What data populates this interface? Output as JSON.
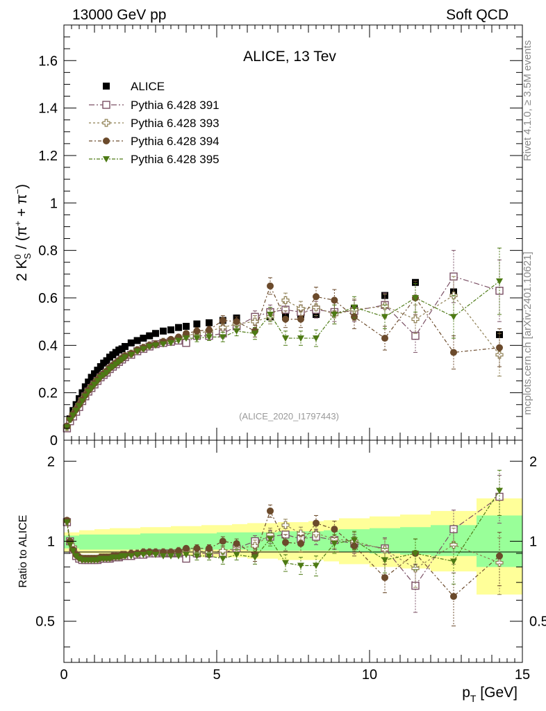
{
  "header": {
    "left": "13000 GeV pp",
    "right": "Soft QCD"
  },
  "side_labels": {
    "rivet": "Rivet 4.1.0, ≥ 3.5M events",
    "mcplots": "mcplots.cern.ch [arXiv:2401.10621]"
  },
  "colors": {
    "alice": "#000000",
    "p391": "#7a4f64",
    "p393": "#8e7f52",
    "p394": "#6b4a2b",
    "p395": "#4d7a14",
    "band_yellow": "#ffff99",
    "band_green": "#99ff99"
  },
  "chart_data": [
    {
      "type": "scatter",
      "title": "ALICE, 13 Tev",
      "analysis_tag": "(ALICE_2020_I1797443)",
      "ylabel": "2 K_S^0 / (π⁺ + π⁻)",
      "ylabel_parts": {
        "prefix": "2 K",
        "sup": "0",
        "sub": "S",
        "paren_open": " / (π",
        "plus": "+",
        "mid": " + π",
        "minus": "−",
        "paren_close": ")"
      },
      "xlim": [
        0,
        15
      ],
      "ylim": [
        0,
        1.75
      ],
      "yticks": [
        "0",
        "0.2",
        "0.4",
        "0.6",
        "0.8",
        "1",
        "1.2",
        "1.4",
        "1.6"
      ],
      "legend": [
        "ALICE",
        "Pythia 6.428 391",
        "Pythia 6.428 393",
        "Pythia 6.428 394",
        "Pythia 6.428 395"
      ],
      "x": [
        0.1,
        0.2,
        0.3,
        0.4,
        0.5,
        0.6,
        0.7,
        0.8,
        0.9,
        1.0,
        1.1,
        1.2,
        1.3,
        1.4,
        1.5,
        1.6,
        1.7,
        1.8,
        1.9,
        2.0,
        2.2,
        2.4,
        2.6,
        2.8,
        3.0,
        3.25,
        3.5,
        3.75,
        4.0,
        4.35,
        4.75,
        5.2,
        5.65,
        6.25,
        6.75,
        7.25,
        7.75,
        8.25,
        8.85,
        9.5,
        10.5,
        11.5,
        12.75,
        14.25
      ],
      "series": [
        {
          "name": "ALICE",
          "values": [
            0.05,
            0.09,
            0.125,
            0.15,
            0.175,
            0.2,
            0.225,
            0.245,
            0.265,
            0.28,
            0.295,
            0.31,
            0.325,
            0.335,
            0.35,
            0.36,
            0.37,
            0.38,
            0.385,
            0.395,
            0.41,
            0.42,
            0.43,
            0.44,
            0.45,
            0.46,
            0.465,
            0.475,
            0.48,
            0.49,
            0.495,
            0.505,
            0.515,
            0.52,
            0.52,
            0.52,
            0.53,
            0.53,
            0.54,
            0.555,
            0.61,
            0.665,
            0.625,
            0.445
          ]
        },
        {
          "name": "Pythia 6.428 391",
          "values": [
            0.05,
            0.08,
            0.1,
            0.12,
            0.14,
            0.165,
            0.185,
            0.205,
            0.22,
            0.235,
            0.25,
            0.265,
            0.275,
            0.285,
            0.3,
            0.31,
            0.32,
            0.33,
            0.34,
            0.35,
            0.36,
            0.375,
            0.385,
            0.395,
            0.405,
            0.41,
            0.415,
            0.42,
            0.41,
            0.44,
            0.44,
            0.45,
            0.48,
            0.52,
            0.54,
            0.55,
            0.54,
            0.55,
            0.54,
            0.545,
            0.57,
            0.44,
            0.69,
            0.63
          ],
          "err": [
            0.01,
            0.01,
            0.01,
            0.01,
            0.01,
            0.01,
            0.01,
            0.01,
            0.01,
            0.01,
            0.01,
            0.01,
            0.01,
            0.01,
            0.01,
            0.01,
            0.01,
            0.01,
            0.01,
            0.01,
            0.01,
            0.01,
            0.01,
            0.01,
            0.01,
            0.01,
            0.01,
            0.01,
            0.01,
            0.015,
            0.015,
            0.02,
            0.02,
            0.025,
            0.03,
            0.03,
            0.03,
            0.035,
            0.04,
            0.045,
            0.05,
            0.07,
            0.11,
            0.13
          ]
        },
        {
          "name": "Pythia 6.428 393",
          "values": [
            0.055,
            0.09,
            0.11,
            0.13,
            0.15,
            0.17,
            0.19,
            0.21,
            0.225,
            0.24,
            0.255,
            0.27,
            0.28,
            0.29,
            0.305,
            0.315,
            0.325,
            0.335,
            0.345,
            0.355,
            0.365,
            0.38,
            0.39,
            0.4,
            0.405,
            0.415,
            0.42,
            0.43,
            0.44,
            0.45,
            0.46,
            0.475,
            0.49,
            0.5,
            0.52,
            0.59,
            0.555,
            0.56,
            0.53,
            0.55,
            0.565,
            0.51,
            0.61,
            0.36
          ],
          "err": [
            0.01,
            0.01,
            0.01,
            0.01,
            0.01,
            0.01,
            0.01,
            0.01,
            0.01,
            0.01,
            0.01,
            0.01,
            0.01,
            0.01,
            0.01,
            0.01,
            0.01,
            0.01,
            0.01,
            0.01,
            0.01,
            0.01,
            0.01,
            0.01,
            0.01,
            0.01,
            0.01,
            0.01,
            0.01,
            0.015,
            0.015,
            0.02,
            0.02,
            0.025,
            0.03,
            0.03,
            0.03,
            0.035,
            0.04,
            0.045,
            0.05,
            0.06,
            0.08,
            0.09
          ]
        },
        {
          "name": "Pythia 6.428 394",
          "values": [
            0.06,
            0.09,
            0.11,
            0.13,
            0.15,
            0.17,
            0.19,
            0.21,
            0.225,
            0.24,
            0.255,
            0.27,
            0.28,
            0.29,
            0.305,
            0.315,
            0.325,
            0.335,
            0.345,
            0.355,
            0.365,
            0.38,
            0.39,
            0.4,
            0.405,
            0.415,
            0.425,
            0.435,
            0.45,
            0.46,
            0.465,
            0.505,
            0.5,
            0.46,
            0.65,
            0.51,
            0.51,
            0.605,
            0.59,
            0.52,
            0.43,
            0.6,
            0.37,
            0.39
          ],
          "err": [
            0.01,
            0.01,
            0.01,
            0.01,
            0.01,
            0.01,
            0.01,
            0.01,
            0.01,
            0.01,
            0.01,
            0.01,
            0.01,
            0.01,
            0.01,
            0.01,
            0.01,
            0.01,
            0.01,
            0.01,
            0.01,
            0.01,
            0.01,
            0.01,
            0.01,
            0.01,
            0.01,
            0.01,
            0.01,
            0.015,
            0.015,
            0.02,
            0.02,
            0.025,
            0.035,
            0.035,
            0.035,
            0.04,
            0.045,
            0.05,
            0.05,
            0.07,
            0.07,
            0.08
          ]
        },
        {
          "name": "Pythia 6.428 395",
          "values": [
            0.055,
            0.085,
            0.105,
            0.125,
            0.145,
            0.165,
            0.185,
            0.205,
            0.22,
            0.235,
            0.25,
            0.265,
            0.275,
            0.285,
            0.3,
            0.31,
            0.32,
            0.33,
            0.34,
            0.35,
            0.36,
            0.375,
            0.385,
            0.395,
            0.4,
            0.405,
            0.41,
            0.42,
            0.43,
            0.43,
            0.435,
            0.435,
            0.46,
            0.45,
            0.53,
            0.43,
            0.43,
            0.43,
            0.53,
            0.56,
            0.52,
            0.6,
            0.52,
            0.67
          ],
          "err": [
            0.01,
            0.01,
            0.01,
            0.01,
            0.01,
            0.01,
            0.01,
            0.01,
            0.01,
            0.01,
            0.01,
            0.01,
            0.01,
            0.01,
            0.01,
            0.01,
            0.01,
            0.01,
            0.01,
            0.01,
            0.01,
            0.01,
            0.01,
            0.01,
            0.01,
            0.01,
            0.01,
            0.01,
            0.01,
            0.015,
            0.015,
            0.02,
            0.02,
            0.025,
            0.03,
            0.03,
            0.03,
            0.035,
            0.04,
            0.045,
            0.05,
            0.06,
            0.09,
            0.14
          ]
        }
      ]
    },
    {
      "type": "scatter",
      "ylabel": "Ratio to ALICE",
      "xlabel": "p_T [GeV]",
      "xlabel_parts": {
        "p": "p",
        "sub": "T",
        "rest": " [GeV]"
      },
      "xlim": [
        0,
        15
      ],
      "ylim": [
        0.35,
        2.4
      ],
      "yscale": "log",
      "xticks": [
        "0",
        "5",
        "10",
        "15"
      ],
      "yticks": [
        "0.5",
        "1",
        "2"
      ],
      "reference_line": 1,
      "uncertainty_bands": {
        "x_edges": [
          0,
          0.5,
          1.0,
          1.5,
          2.0,
          2.5,
          3.0,
          3.5,
          4.0,
          4.5,
          5.0,
          5.5,
          6.0,
          6.5,
          7.0,
          7.5,
          8.0,
          8.5,
          9.0,
          10.0,
          11.0,
          12.0,
          13.5,
          15.0
        ],
        "yellow_low": [
          0.91,
          0.9,
          0.9,
          0.89,
          0.89,
          0.89,
          0.88,
          0.88,
          0.88,
          0.87,
          0.87,
          0.87,
          0.86,
          0.86,
          0.85,
          0.85,
          0.85,
          0.84,
          0.82,
          0.8,
          0.79,
          0.77,
          0.63
        ],
        "yellow_high": [
          1.08,
          1.1,
          1.11,
          1.12,
          1.12,
          1.13,
          1.13,
          1.14,
          1.14,
          1.15,
          1.15,
          1.16,
          1.17,
          1.17,
          1.18,
          1.18,
          1.19,
          1.2,
          1.22,
          1.24,
          1.26,
          1.3,
          1.45
        ],
        "green_low": [
          0.94,
          0.93,
          0.93,
          0.93,
          0.93,
          0.93,
          0.93,
          0.93,
          0.93,
          0.93,
          0.93,
          0.93,
          0.92,
          0.92,
          0.92,
          0.92,
          0.92,
          0.92,
          0.91,
          0.9,
          0.89,
          0.88,
          0.8
        ],
        "green_high": [
          1.05,
          1.06,
          1.06,
          1.06,
          1.06,
          1.07,
          1.07,
          1.07,
          1.07,
          1.07,
          1.08,
          1.08,
          1.08,
          1.08,
          1.09,
          1.09,
          1.09,
          1.1,
          1.11,
          1.12,
          1.13,
          1.15,
          1.25
        ]
      },
      "x": [
        0.1,
        0.2,
        0.3,
        0.4,
        0.5,
        0.6,
        0.7,
        0.8,
        0.9,
        1.0,
        1.1,
        1.2,
        1.3,
        1.4,
        1.5,
        1.6,
        1.7,
        1.8,
        1.9,
        2.0,
        2.2,
        2.4,
        2.6,
        2.8,
        3.0,
        3.25,
        3.5,
        3.75,
        4.0,
        4.35,
        4.75,
        5.2,
        5.65,
        6.25,
        6.75,
        7.25,
        7.75,
        8.25,
        8.85,
        9.5,
        10.5,
        11.5,
        12.75,
        14.25
      ],
      "series": [
        {
          "name": "Pythia 6.428 391",
          "values": [
            1.18,
            1.0,
            0.93,
            0.88,
            0.86,
            0.85,
            0.85,
            0.85,
            0.85,
            0.85,
            0.85,
            0.86,
            0.86,
            0.86,
            0.86,
            0.87,
            0.87,
            0.87,
            0.88,
            0.88,
            0.88,
            0.89,
            0.89,
            0.9,
            0.9,
            0.9,
            0.9,
            0.9,
            0.86,
            0.9,
            0.9,
            0.9,
            0.94,
            1.0,
            1.04,
            1.06,
            1.02,
            1.04,
            1.01,
            0.98,
            0.94,
            0.68,
            1.11,
            1.47
          ],
          "err": [
            0.02,
            0.02,
            0.02,
            0.02,
            0.02,
            0.02,
            0.02,
            0.02,
            0.02,
            0.02,
            0.02,
            0.02,
            0.02,
            0.02,
            0.02,
            0.02,
            0.02,
            0.02,
            0.02,
            0.02,
            0.02,
            0.02,
            0.02,
            0.02,
            0.02,
            0.02,
            0.02,
            0.02,
            0.02,
            0.03,
            0.03,
            0.04,
            0.04,
            0.05,
            0.06,
            0.06,
            0.06,
            0.07,
            0.08,
            0.08,
            0.09,
            0.14,
            0.2,
            0.3
          ]
        },
        {
          "name": "Pythia 6.428 393",
          "values": [
            1.19,
            1.0,
            0.95,
            0.89,
            0.87,
            0.86,
            0.86,
            0.86,
            0.86,
            0.86,
            0.86,
            0.87,
            0.87,
            0.87,
            0.87,
            0.88,
            0.88,
            0.88,
            0.89,
            0.89,
            0.9,
            0.9,
            0.91,
            0.91,
            0.91,
            0.91,
            0.91,
            0.92,
            0.93,
            0.92,
            0.91,
            0.92,
            0.94,
            0.96,
            1.06,
            1.15,
            1.07,
            1.07,
            1.02,
            1.0,
            0.93,
            0.79,
            0.97,
            0.83
          ],
          "err": [
            0.02,
            0.02,
            0.02,
            0.02,
            0.02,
            0.02,
            0.02,
            0.02,
            0.02,
            0.02,
            0.02,
            0.02,
            0.02,
            0.02,
            0.02,
            0.02,
            0.02,
            0.02,
            0.02,
            0.02,
            0.02,
            0.02,
            0.02,
            0.02,
            0.02,
            0.02,
            0.02,
            0.02,
            0.02,
            0.03,
            0.03,
            0.04,
            0.04,
            0.05,
            0.06,
            0.06,
            0.06,
            0.07,
            0.08,
            0.08,
            0.09,
            0.12,
            0.15,
            0.2
          ]
        },
        {
          "name": "Pythia 6.428 394",
          "values": [
            1.2,
            1.0,
            0.93,
            0.89,
            0.87,
            0.86,
            0.86,
            0.86,
            0.86,
            0.86,
            0.86,
            0.87,
            0.87,
            0.87,
            0.87,
            0.88,
            0.88,
            0.88,
            0.89,
            0.89,
            0.9,
            0.9,
            0.91,
            0.91,
            0.91,
            0.91,
            0.91,
            0.92,
            0.94,
            0.94,
            0.94,
            1.0,
            0.98,
            0.89,
            1.3,
            0.99,
            0.98,
            1.17,
            1.11,
            0.96,
            0.73,
            0.9,
            0.62,
            0.88
          ],
          "err": [
            0.02,
            0.02,
            0.02,
            0.02,
            0.02,
            0.02,
            0.02,
            0.02,
            0.02,
            0.02,
            0.02,
            0.02,
            0.02,
            0.02,
            0.02,
            0.02,
            0.02,
            0.02,
            0.02,
            0.02,
            0.02,
            0.02,
            0.02,
            0.02,
            0.02,
            0.02,
            0.02,
            0.02,
            0.02,
            0.03,
            0.03,
            0.04,
            0.04,
            0.05,
            0.07,
            0.07,
            0.07,
            0.08,
            0.08,
            0.08,
            0.09,
            0.12,
            0.14,
            0.2
          ]
        },
        {
          "name": "Pythia 6.428 395",
          "values": [
            1.18,
            0.97,
            0.92,
            0.88,
            0.86,
            0.85,
            0.85,
            0.85,
            0.85,
            0.85,
            0.85,
            0.86,
            0.86,
            0.86,
            0.86,
            0.87,
            0.87,
            0.87,
            0.88,
            0.88,
            0.88,
            0.89,
            0.89,
            0.9,
            0.89,
            0.88,
            0.88,
            0.88,
            0.89,
            0.88,
            0.88,
            0.86,
            0.89,
            0.87,
            1.02,
            0.83,
            0.81,
            0.81,
            0.98,
            1.01,
            0.85,
            0.9,
            0.84,
            1.55
          ],
          "err": [
            0.02,
            0.02,
            0.02,
            0.02,
            0.02,
            0.02,
            0.02,
            0.02,
            0.02,
            0.02,
            0.02,
            0.02,
            0.02,
            0.02,
            0.02,
            0.02,
            0.02,
            0.02,
            0.02,
            0.02,
            0.02,
            0.02,
            0.02,
            0.02,
            0.02,
            0.02,
            0.02,
            0.02,
            0.02,
            0.03,
            0.03,
            0.04,
            0.04,
            0.05,
            0.06,
            0.06,
            0.06,
            0.07,
            0.08,
            0.08,
            0.09,
            0.12,
            0.15,
            0.3
          ]
        }
      ]
    }
  ]
}
